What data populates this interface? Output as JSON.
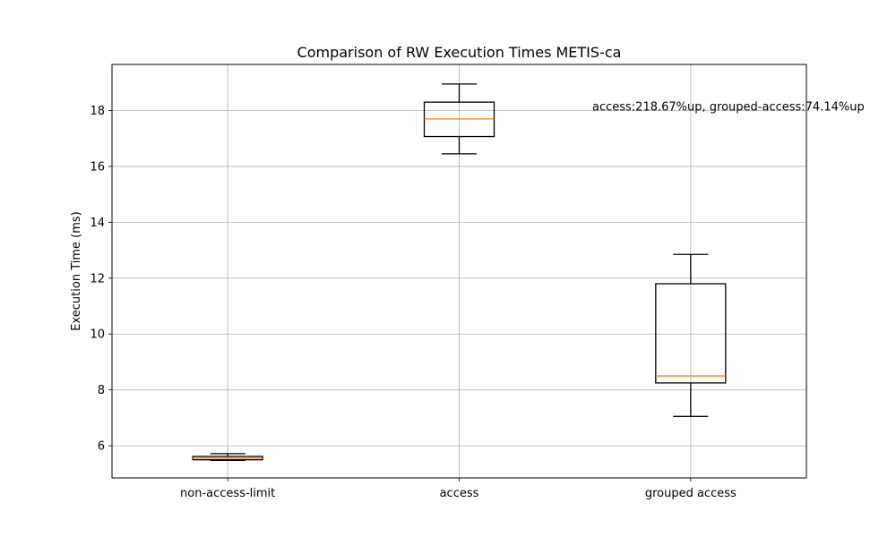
{
  "chart_data": {
    "type": "boxplot",
    "title": "Comparison of RW Execution Times METIS-ca",
    "xlabel": "",
    "ylabel": "Execution Time (ms)",
    "ylim": [
      4.85,
      19.65
    ],
    "yticks": [
      6,
      8,
      10,
      12,
      14,
      16,
      18
    ],
    "grid": true,
    "categories": [
      "non-access-limit",
      "access",
      "grouped access"
    ],
    "boxes": [
      {
        "whisker_low": 5.48,
        "q1": 5.5,
        "median": 5.56,
        "q3": 5.62,
        "whisker_high": 5.72
      },
      {
        "whisker_low": 16.45,
        "q1": 17.07,
        "median": 17.7,
        "q3": 18.3,
        "whisker_high": 18.95
      },
      {
        "whisker_low": 7.05,
        "q1": 8.25,
        "median": 8.5,
        "q3": 11.8,
        "whisker_high": 12.85
      }
    ],
    "annotation": {
      "text": "access:218.67%up, grouped-access:74.14%up",
      "y": 18.15
    },
    "colors": {
      "box": "#000000",
      "median": "#ff7f0e",
      "grid": "#b0b0b0"
    }
  }
}
